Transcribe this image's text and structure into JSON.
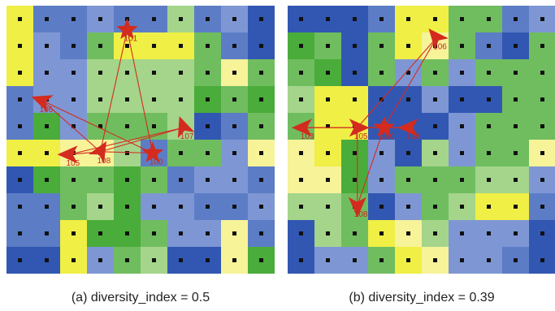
{
  "colors": {
    "Y": "#f0ef45",
    "y": "#f6f399",
    "L": "#a4d58a",
    "G": "#70bd5f",
    "D": "#4aac3a",
    "P": "#7e97d4",
    "M": "#5c7dc6",
    "B": "#3257b2",
    "dot": "#111111",
    "arrow": "#d42b1f",
    "label": "#c72a1e"
  },
  "panels": [
    {
      "caption": "(a) diversity_index = 0.5",
      "grid": [
        "YMMPMMLMPB",
        "YPMGYYYGMB",
        "YPPLLLLGyG",
        "MPPLLLLDGD",
        "MDPGGGLBMG",
        "YYyyLMGGPy",
        "BDGGDGMPPM",
        "MMGLDPPMMP",
        "MMYDDGPPyM",
        "BBYPGLBByD"
      ],
      "agents": [
        {
          "id": "101",
          "row": 0.9,
          "col": 4.5,
          "shape": "star",
          "angle": 0
        },
        {
          "id": "106",
          "row": 3.55,
          "col": 1.35,
          "shape": "arrow",
          "angle": 200
        },
        {
          "id": "107",
          "row": 4.55,
          "col": 6.6,
          "shape": "arrow",
          "angle": 250
        },
        {
          "id": "105",
          "row": 5.55,
          "col": 2.35,
          "shape": "arrow",
          "angle": 180
        },
        {
          "id": "108",
          "row": 5.45,
          "col": 3.5,
          "shape": "arrow",
          "angle": 300
        },
        {
          "id": "100",
          "row": 5.5,
          "col": 5.45,
          "shape": "star",
          "angle": 0
        }
      ],
      "links": [
        [
          "101",
          "108"
        ],
        [
          "106",
          "108"
        ],
        [
          "107",
          "108"
        ],
        [
          "105",
          "108"
        ],
        [
          "100",
          "108"
        ],
        [
          "100",
          "106"
        ],
        [
          "107",
          "105"
        ],
        [
          "101",
          "100"
        ]
      ]
    },
    {
      "caption": "(b) diversity_index = 0.39",
      "grid": [
        "BBBMYYGGMP",
        "DGBGYyGMBG",
        "GDBGPGPGGG",
        "LYYBBPBBGG",
        "GYYBBBPGGG",
        "yYDPBLPGGy",
        "yyDPGGGLLP",
        "LLGBPGLYYM",
        "BLGYyLPPPB",
        "BPPGYyPPMB"
      ],
      "agents": [
        {
          "id": "106",
          "row": 1.2,
          "col": 5.55,
          "shape": "arrow",
          "angle": 230
        },
        {
          "id": "103",
          "row": 4.55,
          "col": 0.6,
          "shape": "arrow",
          "angle": 180
        },
        {
          "id": "105",
          "row": 4.55,
          "col": 2.6,
          "shape": "arrow",
          "angle": 0
        },
        {
          "id": "100",
          "row": 4.55,
          "col": 3.6,
          "shape": "star",
          "angle": 0
        },
        {
          "id": "109",
          "row": 4.55,
          "col": 4.55,
          "shape": "arrow",
          "angle": 180
        },
        {
          "id": "108",
          "row": 7.45,
          "col": 2.6,
          "shape": "arrow",
          "angle": 90
        }
      ],
      "links": [
        [
          "103",
          "100"
        ],
        [
          "105",
          "100"
        ],
        [
          "109",
          "100"
        ],
        [
          "106",
          "100"
        ],
        [
          "108",
          "100"
        ],
        [
          "103",
          "109"
        ],
        [
          "106",
          "105"
        ],
        [
          "108",
          "105"
        ]
      ]
    }
  ]
}
